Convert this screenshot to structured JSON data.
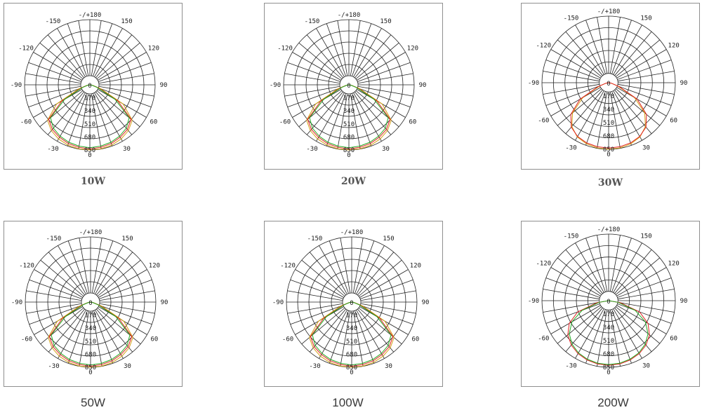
{
  "chart_data": [
    {
      "type": "polar",
      "caption": "10W",
      "angle_labels": [
        "0",
        "30",
        "60",
        "90",
        "120",
        "150",
        "-/+180",
        "-150",
        "-120",
        "-90",
        "-60",
        "-30"
      ],
      "radial_labels": [
        "0",
        "170",
        "340",
        "510",
        "680",
        "850"
      ],
      "rlim": [
        0,
        850
      ],
      "colors": {
        "c0_180": "#d4a017",
        "c90_270": "#e02020",
        "c_extra": "#22aa22"
      },
      "series": [
        {
          "color": "#d4a017",
          "points": [
            [
              0,
              850
            ],
            [
              10,
              846
            ],
            [
              20,
              836
            ],
            [
              30,
              815
            ],
            [
              40,
              780
            ],
            [
              50,
              720
            ],
            [
              60,
              500
            ],
            [
              70,
              150
            ],
            [
              80,
              40
            ],
            [
              90,
              0
            ]
          ]
        },
        {
          "color": "#e02020",
          "points": [
            [
              0,
              836
            ],
            [
              10,
              828
            ],
            [
              20,
              815
            ],
            [
              30,
              790
            ],
            [
              40,
              760
            ],
            [
              50,
              700
            ],
            [
              60,
              420
            ],
            [
              70,
              120
            ],
            [
              80,
              30
            ],
            [
              90,
              0
            ]
          ]
        },
        {
          "color": "#22aa22",
          "points": [
            [
              0,
              820
            ],
            [
              10,
              812
            ],
            [
              20,
              798
            ],
            [
              30,
              774
            ],
            [
              40,
              738
            ],
            [
              50,
              668
            ],
            [
              60,
              380
            ],
            [
              70,
              100
            ],
            [
              80,
              25
            ],
            [
              90,
              0
            ]
          ]
        }
      ]
    },
    {
      "type": "polar",
      "caption": "20W",
      "angle_labels": [
        "0",
        "30",
        "60",
        "90",
        "120",
        "150",
        "-/+180",
        "-150",
        "-120",
        "-90",
        "-60",
        "-30"
      ],
      "radial_labels": [
        "0",
        "170",
        "340",
        "510",
        "680",
        "850"
      ],
      "rlim": [
        0,
        850
      ],
      "colors": {
        "c0_180": "#d4a017",
        "c90_270": "#e02020",
        "c_extra": "#22aa22"
      },
      "series": [
        {
          "color": "#d4a017",
          "points": [
            [
              0,
              850
            ],
            [
              10,
              846
            ],
            [
              20,
              836
            ],
            [
              30,
              815
            ],
            [
              40,
              780
            ],
            [
              50,
              720
            ],
            [
              60,
              500
            ],
            [
              70,
              150
            ],
            [
              80,
              40
            ],
            [
              90,
              0
            ]
          ]
        },
        {
          "color": "#e02020",
          "points": [
            [
              0,
              836
            ],
            [
              10,
              828
            ],
            [
              20,
              815
            ],
            [
              30,
              790
            ],
            [
              40,
              760
            ],
            [
              50,
              700
            ],
            [
              60,
              420
            ],
            [
              70,
              120
            ],
            [
              80,
              30
            ],
            [
              90,
              0
            ]
          ]
        },
        {
          "color": "#22aa22",
          "points": [
            [
              0,
              820
            ],
            [
              10,
              812
            ],
            [
              20,
              798
            ],
            [
              30,
              774
            ],
            [
              40,
              738
            ],
            [
              50,
              668
            ],
            [
              60,
              380
            ],
            [
              70,
              100
            ],
            [
              80,
              25
            ],
            [
              90,
              0
            ]
          ]
        }
      ]
    },
    {
      "type": "polar",
      "caption": "30W",
      "angle_labels": [
        "0",
        "30",
        "60",
        "90",
        "120",
        "150",
        "-/+180",
        "-150",
        "-120",
        "-90",
        "-60",
        "-30"
      ],
      "radial_labels": [
        "0",
        "170",
        "340",
        "510",
        "680",
        "850"
      ],
      "rlim": [
        0,
        850
      ],
      "colors": {
        "c0_180": "#d4a017",
        "c90_270": "#e02020",
        "c_extra": "#22aa22"
      },
      "series": [
        {
          "color": "#d4a017",
          "points": [
            [
              0,
              850
            ],
            [
              10,
              845
            ],
            [
              20,
              830
            ],
            [
              30,
              800
            ],
            [
              40,
              730
            ],
            [
              50,
              600
            ],
            [
              60,
              380
            ],
            [
              70,
              120
            ],
            [
              80,
              30
            ],
            [
              90,
              0
            ]
          ]
        },
        {
          "color": "#e02020",
          "points": [
            [
              0,
              835
            ],
            [
              10,
              830
            ],
            [
              20,
              818
            ],
            [
              30,
              792
            ],
            [
              40,
              740
            ],
            [
              50,
              630
            ],
            [
              60,
              420
            ],
            [
              70,
              140
            ],
            [
              80,
              35
            ],
            [
              90,
              0
            ]
          ]
        }
      ]
    },
    {
      "type": "polar",
      "caption": "50W",
      "angle_labels": [
        "0",
        "30",
        "60",
        "90",
        "120",
        "150",
        "-/+180",
        "-150",
        "-120",
        "-90",
        "-60",
        "-30"
      ],
      "radial_labels": [
        "0",
        "170",
        "340",
        "510",
        "680",
        "850"
      ],
      "rlim": [
        0,
        850
      ],
      "colors": {
        "c0_180": "#d4a017",
        "c90_270": "#e02020",
        "c_extra": "#22aa22"
      },
      "series": [
        {
          "color": "#d4a017",
          "points": [
            [
              0,
              850
            ],
            [
              10,
              846
            ],
            [
              20,
              836
            ],
            [
              30,
              815
            ],
            [
              40,
              780
            ],
            [
              50,
              720
            ],
            [
              60,
              500
            ],
            [
              70,
              150
            ],
            [
              80,
              40
            ],
            [
              90,
              0
            ]
          ]
        },
        {
          "color": "#e02020",
          "points": [
            [
              0,
              836
            ],
            [
              10,
              828
            ],
            [
              20,
              815
            ],
            [
              30,
              790
            ],
            [
              40,
              760
            ],
            [
              50,
              700
            ],
            [
              60,
              420
            ],
            [
              70,
              120
            ],
            [
              80,
              30
            ],
            [
              90,
              0
            ]
          ]
        },
        {
          "color": "#22aa22",
          "points": [
            [
              0,
              820
            ],
            [
              10,
              812
            ],
            [
              20,
              798
            ],
            [
              30,
              774
            ],
            [
              40,
              738
            ],
            [
              50,
              668
            ],
            [
              60,
              380
            ],
            [
              70,
              100
            ],
            [
              80,
              25
            ],
            [
              90,
              0
            ]
          ]
        }
      ]
    },
    {
      "type": "polar",
      "caption": "100W",
      "angle_labels": [
        "0",
        "30",
        "60",
        "90",
        "120",
        "150",
        "-/+180",
        "-150",
        "-120",
        "-90",
        "-60",
        "-30"
      ],
      "radial_labels": [
        "0",
        "170",
        "340",
        "510",
        "680",
        "850"
      ],
      "rlim": [
        0,
        850
      ],
      "colors": {
        "c0_180": "#d4a017",
        "c90_270": "#e02020",
        "c_extra": "#22aa22"
      },
      "series": [
        {
          "color": "#d4a017",
          "points": [
            [
              0,
              850
            ],
            [
              10,
              846
            ],
            [
              20,
              836
            ],
            [
              30,
              815
            ],
            [
              40,
              780
            ],
            [
              50,
              720
            ],
            [
              60,
              500
            ],
            [
              70,
              150
            ],
            [
              80,
              40
            ],
            [
              90,
              0
            ]
          ]
        },
        {
          "color": "#e02020",
          "points": [
            [
              0,
              836
            ],
            [
              10,
              828
            ],
            [
              20,
              815
            ],
            [
              30,
              790
            ],
            [
              40,
              760
            ],
            [
              50,
              700
            ],
            [
              60,
              420
            ],
            [
              70,
              120
            ],
            [
              80,
              30
            ],
            [
              90,
              0
            ]
          ]
        },
        {
          "color": "#22aa22",
          "points": [
            [
              0,
              820
            ],
            [
              10,
              812
            ],
            [
              20,
              798
            ],
            [
              30,
              774
            ],
            [
              40,
              738
            ],
            [
              50,
              668
            ],
            [
              60,
              380
            ],
            [
              70,
              100
            ],
            [
              80,
              25
            ],
            [
              90,
              0
            ]
          ]
        }
      ]
    },
    {
      "type": "polar",
      "caption": "200W",
      "angle_labels": [
        "0",
        "30",
        "60",
        "90",
        "120",
        "150",
        "-/+180",
        "-150",
        "-120",
        "-90",
        "-60",
        "-30"
      ],
      "radial_labels": [
        "0",
        "170",
        "340",
        "510",
        "680",
        "850"
      ],
      "rlim": [
        0,
        850
      ],
      "colors": {
        "c0_180": "#d4a017",
        "c90_270": "#e02020",
        "c_extra": "#22aa22"
      },
      "series": [
        {
          "color": "#e02020",
          "points": [
            [
              0,
              825
            ],
            [
              10,
              820
            ],
            [
              20,
              805
            ],
            [
              30,
              780
            ],
            [
              40,
              740
            ],
            [
              50,
              680
            ],
            [
              60,
              580
            ],
            [
              70,
              420
            ],
            [
              80,
              150
            ],
            [
              90,
              0
            ]
          ]
        },
        {
          "color": "#22aa22",
          "points": [
            [
              0,
              815
            ],
            [
              10,
              810
            ],
            [
              20,
              795
            ],
            [
              30,
              770
            ],
            [
              40,
              725
            ],
            [
              50,
              655
            ],
            [
              60,
              540
            ],
            [
              70,
              360
            ],
            [
              80,
              120
            ],
            [
              90,
              0
            ]
          ]
        }
      ]
    }
  ]
}
